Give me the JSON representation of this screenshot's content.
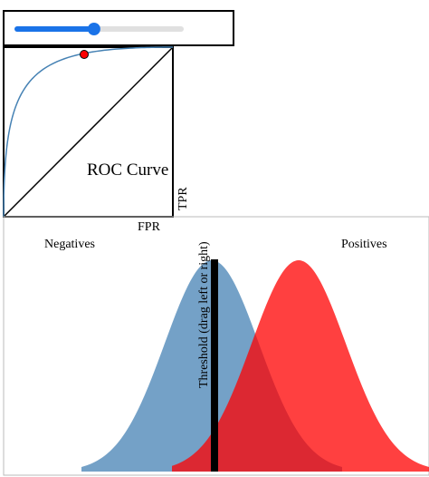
{
  "slider": {
    "value": 0.47
  },
  "roc": {
    "title": "ROC Curve",
    "xlabel": "FPR",
    "ylabel": "TPR"
  },
  "distributions": {
    "negatives_label": "Negatives",
    "positives_label": "Positives",
    "threshold_label": "Threshold (drag left or right)"
  },
  "colors": {
    "negatives": "#4682b4",
    "positives": "#ff0000",
    "roc_curve": "#4682b4",
    "operating_point": "#ff0000",
    "slider_accent": "#1a73e8"
  }
}
